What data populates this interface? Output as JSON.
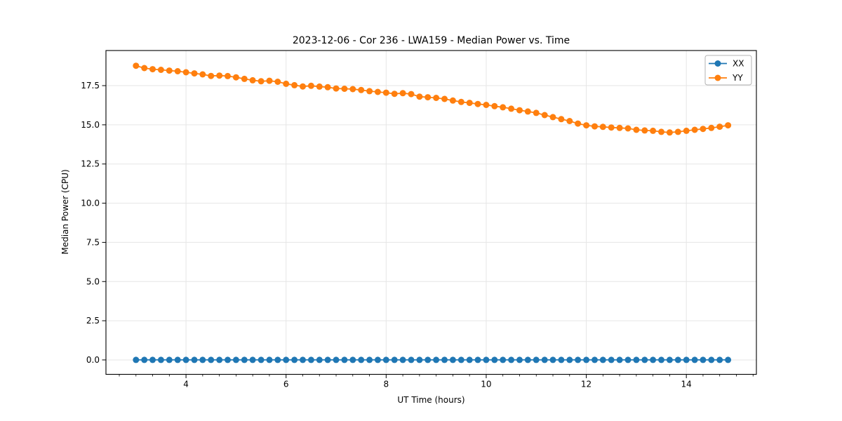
{
  "figure": {
    "background": "#ffffff",
    "spine_color": "#000000",
    "grid_color": "#e6e6e6"
  },
  "chart_data": {
    "type": "line",
    "title": "2023-12-06 - Cor 236 - LWA159 - Median Power vs. Time",
    "xlabel": "UT Time (hours)",
    "ylabel": "Median Power (CPU)",
    "xlim": [
      2.4,
      15.4
    ],
    "ylim": [
      -0.92,
      19.74
    ],
    "grid": true,
    "grid_on_major_only": true,
    "xticks": {
      "values": [
        4,
        6,
        8,
        10,
        12,
        14
      ],
      "labels": [
        "4",
        "6",
        "8",
        "10",
        "12",
        "14"
      ]
    },
    "yticks": {
      "values": [
        0.0,
        2.5,
        5.0,
        7.5,
        10.0,
        12.5,
        15.0,
        17.5
      ],
      "labels": [
        "0.0",
        "2.5",
        "5.0",
        "7.5",
        "10.0",
        "12.5",
        "15.0",
        "17.5"
      ]
    },
    "x_minor_tick_step": 0.3333333,
    "legend": {
      "position": "upper right",
      "entries": [
        "XX",
        "YY"
      ]
    },
    "marker": "circle",
    "marker_size": 9,
    "line_width": 1.8,
    "x": [
      3.0,
      3.167,
      3.333,
      3.5,
      3.667,
      3.833,
      4.0,
      4.167,
      4.333,
      4.5,
      4.667,
      4.833,
      5.0,
      5.167,
      5.333,
      5.5,
      5.667,
      5.833,
      6.0,
      6.167,
      6.333,
      6.5,
      6.667,
      6.833,
      7.0,
      7.167,
      7.333,
      7.5,
      7.667,
      7.833,
      8.0,
      8.167,
      8.333,
      8.5,
      8.667,
      8.833,
      9.0,
      9.167,
      9.333,
      9.5,
      9.667,
      9.833,
      10.0,
      10.167,
      10.333,
      10.5,
      10.667,
      10.833,
      11.0,
      11.167,
      11.333,
      11.5,
      11.667,
      11.833,
      12.0,
      12.167,
      12.333,
      12.5,
      12.667,
      12.833,
      13.0,
      13.167,
      13.333,
      13.5,
      13.667,
      13.833,
      14.0,
      14.167,
      14.333,
      14.5,
      14.667,
      14.833
    ],
    "series": [
      {
        "name": "XX",
        "color": "#1f77b4",
        "values": [
          0,
          0,
          0,
          0,
          0,
          0,
          0,
          0,
          0,
          0,
          0,
          0,
          0,
          0,
          0,
          0,
          0,
          0,
          0,
          0,
          0,
          0,
          0,
          0,
          0,
          0,
          0,
          0,
          0,
          0,
          0,
          0,
          0,
          0,
          0,
          0,
          0,
          0,
          0,
          0,
          0,
          0,
          0,
          0,
          0,
          0,
          0,
          0,
          0,
          0,
          0,
          0,
          0,
          0,
          0,
          0,
          0,
          0,
          0,
          0,
          0,
          0,
          0,
          0,
          0,
          0,
          0,
          0,
          0,
          0,
          0,
          0
        ]
      },
      {
        "name": "YY",
        "color": "#ff7f0e",
        "values": [
          18.77,
          18.62,
          18.55,
          18.51,
          18.46,
          18.42,
          18.35,
          18.28,
          18.22,
          18.12,
          18.14,
          18.11,
          18.03,
          17.93,
          17.84,
          17.78,
          17.81,
          17.75,
          17.62,
          17.53,
          17.45,
          17.49,
          17.44,
          17.4,
          17.32,
          17.3,
          17.28,
          17.22,
          17.15,
          17.1,
          17.05,
          16.98,
          17.02,
          16.96,
          16.8,
          16.76,
          16.72,
          16.65,
          16.55,
          16.46,
          16.4,
          16.33,
          16.27,
          16.19,
          16.12,
          16.03,
          15.93,
          15.85,
          15.76,
          15.62,
          15.49,
          15.36,
          15.24,
          15.08,
          14.97,
          14.9,
          14.87,
          14.83,
          14.8,
          14.77,
          14.68,
          14.64,
          14.62,
          14.55,
          14.51,
          14.55,
          14.62,
          14.68,
          14.74,
          14.8,
          14.88,
          14.97
        ]
      }
    ]
  }
}
